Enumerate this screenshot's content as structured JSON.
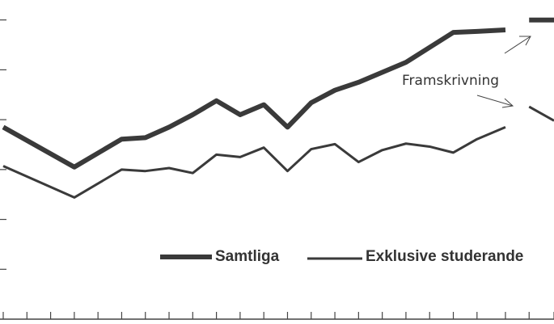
{
  "chart_data": {
    "type": "line",
    "x": [
      0,
      3,
      5,
      6,
      7,
      8,
      9,
      10,
      11,
      12,
      13,
      14,
      15,
      16,
      17,
      18,
      19,
      20,
      21.2,
      21.7,
      22.2,
      23.25
    ],
    "series": [
      {
        "name": "Samtliga",
        "color": "#3a3a3a",
        "values": [
          3.85,
          3.05,
          3.61,
          3.64,
          3.85,
          4.1,
          4.38,
          4.1,
          4.3,
          3.85,
          4.34,
          4.59,
          4.75,
          4.95,
          5.15,
          5.45,
          5.75,
          5.77,
          5.8,
          null,
          6.0,
          6.0
        ]
      },
      {
        "name": "Exklusive studerande",
        "color": "#3a3a3a",
        "values": [
          3.07,
          2.44,
          3.0,
          2.97,
          3.03,
          2.93,
          3.3,
          3.25,
          3.44,
          2.97,
          3.41,
          3.51,
          3.15,
          3.39,
          3.52,
          3.46,
          3.34,
          3.61,
          3.85,
          null,
          4.26,
          3.98
        ]
      }
    ],
    "annotations": [
      "Framskrivning"
    ],
    "xlim": [
      0,
      23.25
    ],
    "ylim": [
      0,
      6.4
    ],
    "xticks": [
      0,
      1,
      2,
      3,
      4,
      5,
      6,
      7,
      8,
      9,
      10,
      11,
      12,
      13,
      14,
      15,
      16,
      17,
      18,
      19,
      20,
      21.2,
      22.2,
      23.25
    ],
    "yticks": [
      1,
      2,
      3,
      4,
      5,
      6
    ],
    "legend": "bottom"
  }
}
